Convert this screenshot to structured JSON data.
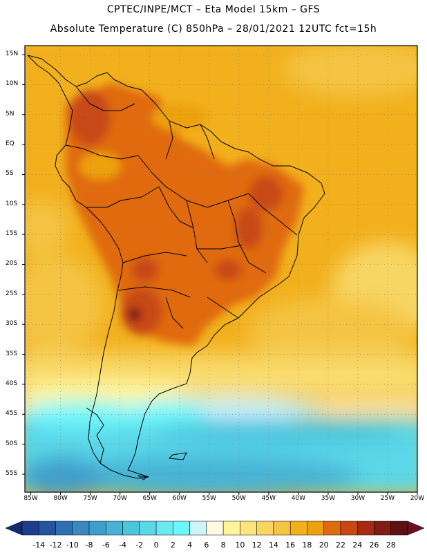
{
  "header": {
    "line1": "CPTEC/INPE/MCT –   Eta Model 15km – GFS",
    "line2": "Absolute Temperature (C) 850hPa – 28/01/2021 12UTC fct=15h"
  },
  "map": {
    "lat_labels": [
      "15N",
      "10N",
      "5N",
      "EQ",
      "5S",
      "10S",
      "15S",
      "20S",
      "25S",
      "30S",
      "35S",
      "40S",
      "45S",
      "50S",
      "55S"
    ],
    "lon_labels": [
      "85W",
      "80W",
      "75W",
      "70W",
      "65W",
      "60W",
      "55W",
      "50W",
      "45W",
      "40W",
      "35W",
      "30W",
      "25W",
      "20W"
    ],
    "lon_range": [
      -86,
      -20
    ],
    "lat_range": [
      16.5,
      -58
    ],
    "gridlines": true
  },
  "colorbar": {
    "labels": [
      "-14",
      "-12",
      "-10",
      "-8",
      "-6",
      "-4",
      "-2",
      "0",
      "2",
      "4",
      "6",
      "8",
      "10",
      "12",
      "14",
      "16",
      "18",
      "20",
      "22",
      "24",
      "26",
      "28"
    ],
    "colors": [
      "#1e3c8c",
      "#24549e",
      "#2d6fb2",
      "#3a88c0",
      "#3f9fcc",
      "#46b3d6",
      "#4cc6df",
      "#5ad7e8",
      "#6ce9f1",
      "#6ef7fb",
      "#cdf3fc",
      "#fff9e2",
      "#fff59b",
      "#fbe57c",
      "#f8d663",
      "#f5c442",
      "#f2b01c",
      "#eda10e",
      "#e06a10",
      "#c84812",
      "#a82a12",
      "#7f1e14",
      "#5e1012"
    ],
    "ends": {
      "low": "#142a6e",
      "high": "#6a0f1e"
    }
  }
}
